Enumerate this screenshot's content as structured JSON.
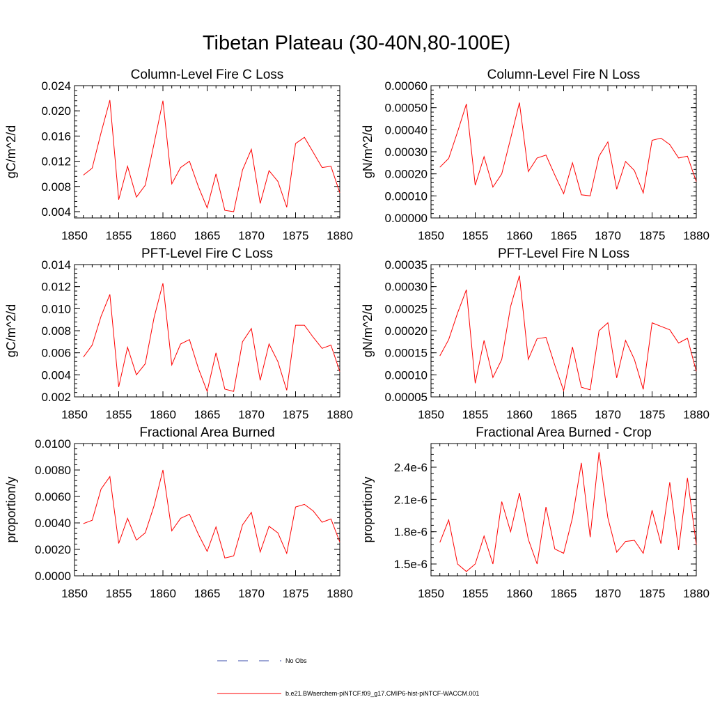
{
  "title": "Tibetan Plateau (30-40N,80-100E)",
  "legend": {
    "items": [
      {
        "label": "No Obs",
        "color": "#3b4dab",
        "dash": true
      },
      {
        "label": "b.e21.BWaerchem-piNTCF.f09_g17.CMIP6-hist-piNTCF-WACCM.001",
        "color": "#ff0000",
        "dash": false
      }
    ]
  },
  "chart_data": [
    {
      "type": "line",
      "title": "Column-Level Fire C Loss",
      "xlabel": "",
      "ylabel": "gC/m^2/d",
      "xlim": [
        1850,
        1880
      ],
      "ylim": [
        0.003,
        0.024
      ],
      "xticks": [
        1850,
        1855,
        1860,
        1865,
        1870,
        1875,
        1880
      ],
      "yticks": [
        0.004,
        0.008,
        0.012,
        0.016,
        0.02,
        0.024
      ],
      "ytick_labels": [
        "0.004",
        "0.008",
        "0.012",
        "0.016",
        "0.020",
        "0.024"
      ],
      "x": [
        1851,
        1852,
        1853,
        1854,
        1855,
        1856,
        1857,
        1858,
        1859,
        1860,
        1861,
        1862,
        1863,
        1864,
        1865,
        1866,
        1867,
        1868,
        1869,
        1870,
        1871,
        1872,
        1873,
        1874,
        1875,
        1876,
        1877,
        1878,
        1879,
        1880
      ],
      "series": [
        {
          "color": "#ff0000",
          "values": [
            0.0098,
            0.0109,
            0.0165,
            0.0217,
            0.0059,
            0.0112,
            0.0063,
            0.0082,
            0.0148,
            0.0216,
            0.0084,
            0.011,
            0.012,
            0.008,
            0.0046,
            0.01,
            0.0042,
            0.004,
            0.0106,
            0.0139,
            0.0053,
            0.0105,
            0.0088,
            0.0047,
            0.0148,
            0.0158,
            0.0134,
            0.011,
            0.0112,
            0.007
          ]
        }
      ]
    },
    {
      "type": "line",
      "title": "Column-Level Fire N Loss",
      "xlabel": "",
      "ylabel": "gN/m^2/d",
      "xlim": [
        1850,
        1880
      ],
      "ylim": [
        0.0,
        0.0006
      ],
      "xticks": [
        1850,
        1855,
        1860,
        1865,
        1870,
        1875,
        1880
      ],
      "yticks": [
        0.0,
        0.0001,
        0.0002,
        0.0003,
        0.0004,
        0.0005,
        0.0006
      ],
      "ytick_labels": [
        "0.00000",
        "0.00010",
        "0.00020",
        "0.00030",
        "0.00040",
        "0.00050",
        "0.00060"
      ],
      "x": [
        1851,
        1852,
        1853,
        1854,
        1855,
        1856,
        1857,
        1858,
        1859,
        1860,
        1861,
        1862,
        1863,
        1864,
        1865,
        1866,
        1867,
        1868,
        1869,
        1870,
        1871,
        1872,
        1873,
        1874,
        1875,
        1876,
        1877,
        1878,
        1879,
        1880
      ],
      "series": [
        {
          "color": "#ff0000",
          "values": [
            0.00023,
            0.00027,
            0.00039,
            0.000517,
            0.000148,
            0.000278,
            0.00014,
            0.0002,
            0.00036,
            0.000523,
            0.00021,
            0.000272,
            0.000285,
            0.000195,
            0.00011,
            0.00025,
            0.000105,
            0.0001,
            0.00028,
            0.000345,
            0.00013,
            0.000256,
            0.000215,
            0.000113,
            0.000352,
            0.000362,
            0.000333,
            0.000272,
            0.00028,
            0.000165
          ]
        }
      ]
    },
    {
      "type": "line",
      "title": "PFT-Level Fire C Loss",
      "xlabel": "",
      "ylabel": "gC/m^2/d",
      "xlim": [
        1850,
        1880
      ],
      "ylim": [
        0.002,
        0.014
      ],
      "xticks": [
        1850,
        1855,
        1860,
        1865,
        1870,
        1875,
        1880
      ],
      "yticks": [
        0.002,
        0.004,
        0.006,
        0.008,
        0.01,
        0.012,
        0.014
      ],
      "ytick_labels": [
        "0.002",
        "0.004",
        "0.006",
        "0.008",
        "0.010",
        "0.012",
        "0.014"
      ],
      "x": [
        1851,
        1852,
        1853,
        1854,
        1855,
        1856,
        1857,
        1858,
        1859,
        1860,
        1861,
        1862,
        1863,
        1864,
        1865,
        1866,
        1867,
        1868,
        1869,
        1870,
        1871,
        1872,
        1873,
        1874,
        1875,
        1876,
        1877,
        1878,
        1879,
        1880
      ],
      "series": [
        {
          "color": "#ff0000",
          "values": [
            0.0056,
            0.0067,
            0.0093,
            0.0113,
            0.0029,
            0.0065,
            0.004,
            0.005,
            0.0092,
            0.0123,
            0.0049,
            0.0068,
            0.0072,
            0.0046,
            0.0025,
            0.006,
            0.0027,
            0.0025,
            0.007,
            0.0082,
            0.0035,
            0.0068,
            0.0052,
            0.0026,
            0.0085,
            0.0085,
            0.0074,
            0.0064,
            0.0067,
            0.0043
          ]
        }
      ]
    },
    {
      "type": "line",
      "title": "PFT-Level Fire N Loss",
      "xlabel": "",
      "ylabel": "gN/m^2/d",
      "xlim": [
        1850,
        1880
      ],
      "ylim": [
        5e-05,
        0.00035
      ],
      "xticks": [
        1850,
        1855,
        1860,
        1865,
        1870,
        1875,
        1880
      ],
      "yticks": [
        5e-05,
        0.0001,
        0.00015,
        0.0002,
        0.00025,
        0.0003,
        0.00035
      ],
      "ytick_labels": [
        "0.00005",
        "0.00010",
        "0.00015",
        "0.00020",
        "0.00025",
        "0.00030",
        "0.00035"
      ],
      "x": [
        1851,
        1852,
        1853,
        1854,
        1855,
        1856,
        1857,
        1858,
        1859,
        1860,
        1861,
        1862,
        1863,
        1864,
        1865,
        1866,
        1867,
        1868,
        1869,
        1870,
        1871,
        1872,
        1873,
        1874,
        1875,
        1876,
        1877,
        1878,
        1879,
        1880
      ],
      "series": [
        {
          "color": "#ff0000",
          "values": [
            0.000143,
            0.00018,
            0.00024,
            0.000293,
            8.1e-05,
            0.000178,
            9.4e-05,
            0.000135,
            0.000255,
            0.000325,
            0.000135,
            0.000182,
            0.000185,
            0.000122,
            6.4e-05,
            0.000163,
            7.2e-05,
            6.6e-05,
            0.0002,
            0.000218,
            9.3e-05,
            0.000178,
            0.000135,
            6.7e-05,
            0.000218,
            0.00021,
            0.000202,
            0.000172,
            0.000183,
            0.000108
          ]
        }
      ]
    },
    {
      "type": "line",
      "title": "Fractional Area Burned",
      "xlabel": "",
      "ylabel": "proportion/y",
      "xlim": [
        1850,
        1880
      ],
      "ylim": [
        0.0,
        0.01
      ],
      "xticks": [
        1850,
        1855,
        1860,
        1865,
        1870,
        1875,
        1880
      ],
      "yticks": [
        0.0,
        0.002,
        0.004,
        0.006,
        0.008,
        0.01
      ],
      "ytick_labels": [
        "0.0000",
        "0.0020",
        "0.0040",
        "0.0060",
        "0.0080",
        "0.0100"
      ],
      "x": [
        1851,
        1852,
        1853,
        1854,
        1855,
        1856,
        1857,
        1858,
        1859,
        1860,
        1861,
        1862,
        1863,
        1864,
        1865,
        1866,
        1867,
        1868,
        1869,
        1870,
        1871,
        1872,
        1873,
        1874,
        1875,
        1876,
        1877,
        1878,
        1879,
        1880
      ],
      "series": [
        {
          "color": "#ff0000",
          "values": [
            0.00395,
            0.0042,
            0.00655,
            0.0075,
            0.00245,
            0.00435,
            0.0027,
            0.00325,
            0.0053,
            0.008,
            0.0034,
            0.00435,
            0.00465,
            0.00315,
            0.00185,
            0.0037,
            0.00135,
            0.0015,
            0.00385,
            0.0048,
            0.0018,
            0.00375,
            0.00325,
            0.0017,
            0.0052,
            0.0054,
            0.0049,
            0.00405,
            0.0043,
            0.00255
          ]
        }
      ]
    },
    {
      "type": "line",
      "title": "Fractional Area Burned - Crop",
      "xlabel": "",
      "ylabel": "proportion/y",
      "xlim": [
        1850,
        1880
      ],
      "ylim": [
        1.39e-06,
        2.62e-06
      ],
      "xticks": [
        1850,
        1855,
        1860,
        1865,
        1870,
        1875,
        1880
      ],
      "yticks": [
        1.5e-06,
        1.8e-06,
        2.1e-06,
        2.4e-06
      ],
      "ytick_labels": [
        "1.5e-6",
        "1.8e-6",
        "2.1e-6",
        "2.4e-6"
      ],
      "x": [
        1851,
        1852,
        1853,
        1854,
        1855,
        1856,
        1857,
        1858,
        1859,
        1860,
        1861,
        1862,
        1863,
        1864,
        1865,
        1866,
        1867,
        1868,
        1869,
        1870,
        1871,
        1872,
        1873,
        1874,
        1875,
        1876,
        1877,
        1878,
        1879,
        1880
      ],
      "series": [
        {
          "color": "#ff0000",
          "values": [
            1.7e-06,
            1.91e-06,
            1.5e-06,
            1.43e-06,
            1.5e-06,
            1.76e-06,
            1.5e-06,
            2.08e-06,
            1.8e-06,
            2.16e-06,
            1.73e-06,
            1.5e-06,
            2.03e-06,
            1.64e-06,
            1.6e-06,
            1.93e-06,
            2.44e-06,
            1.75e-06,
            2.54e-06,
            1.93e-06,
            1.61e-06,
            1.71e-06,
            1.72e-06,
            1.6e-06,
            2e-06,
            1.69e-06,
            2.26e-06,
            1.63e-06,
            2.3e-06,
            1.68e-06
          ]
        }
      ]
    }
  ]
}
